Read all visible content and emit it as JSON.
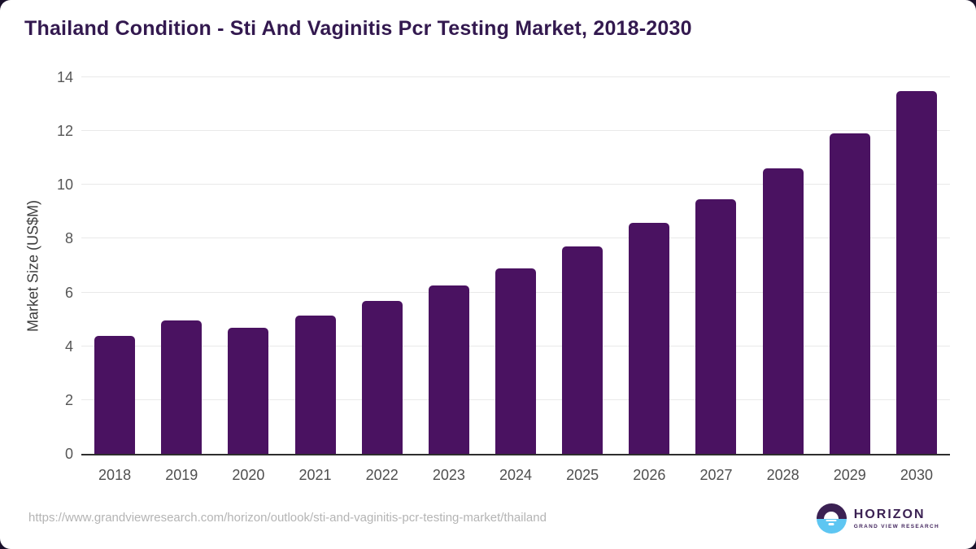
{
  "page": {
    "title": "Thailand Condition - Sti And Vaginitis Pcr Testing Market, 2018-2030"
  },
  "chart_data": {
    "type": "bar",
    "title": "Thailand Condition - Sti And Vaginitis Pcr Testing Market, 2018-2030",
    "categories": [
      "2018",
      "2019",
      "2020",
      "2021",
      "2022",
      "2023",
      "2024",
      "2025",
      "2026",
      "2027",
      "2028",
      "2029",
      "2030"
    ],
    "values": [
      4.4,
      4.95,
      4.7,
      5.15,
      5.7,
      6.25,
      6.9,
      7.7,
      8.6,
      9.45,
      10.6,
      11.9,
      13.5
    ],
    "xlabel": "",
    "ylabel": "Market Size (US$M)",
    "ylim": [
      0,
      14
    ],
    "yticks": [
      0,
      2,
      4,
      6,
      8,
      10,
      12,
      14
    ],
    "grid": true,
    "legend_position": "none",
    "bar_color": "#4a1261"
  },
  "footer": {
    "source_url": "https://www.grandviewresearch.com/horizon/outlook/sti-and-vaginitis-pcr-testing-market/thailand",
    "logo": {
      "brand": "HORIZON",
      "subbrand": "GRAND VIEW RESEARCH"
    }
  },
  "colors": {
    "bar": "#4a1261",
    "title_text": "#33194f",
    "tick_text": "#565656",
    "x_label_text": "#4f4f4f",
    "gridline": "#e9e9e9",
    "axis_line": "#2e2e2e",
    "url_text": "#b4b4b4",
    "logo_purple": "#3b2153",
    "logo_blue": "#5ec6f2",
    "background_behind_card": "#19102a",
    "card_background": "#ffffff"
  }
}
